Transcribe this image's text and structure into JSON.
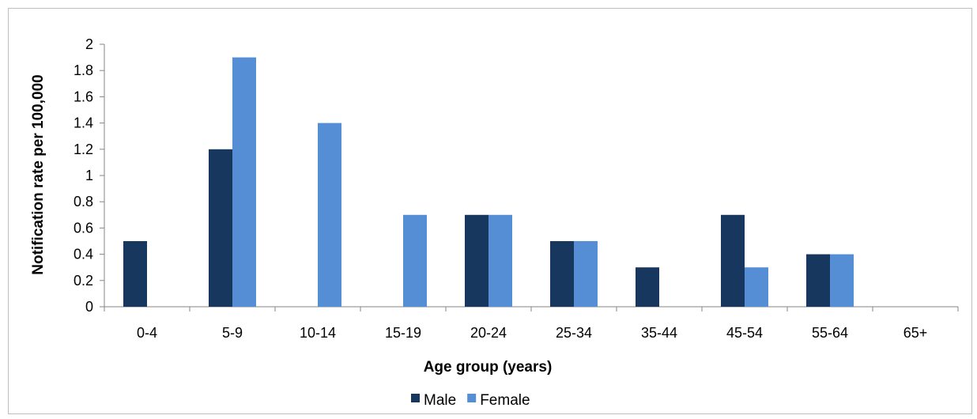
{
  "chart_data": {
    "type": "bar",
    "title": "",
    "xlabel": "Age group (years)",
    "ylabel": "Notification rate per 100,000",
    "categories": [
      "0-4",
      "5-9",
      "10-14",
      "15-19",
      "20-24",
      "25-34",
      "35-44",
      "45-54",
      "55-64",
      "65+"
    ],
    "series": [
      {
        "name": "Male",
        "color": "#17375e",
        "values": [
          0.5,
          1.2,
          0,
          0,
          0.7,
          0.5,
          0.3,
          0.7,
          0.4,
          0
        ]
      },
      {
        "name": "Female",
        "color": "#558ed5",
        "values": [
          0,
          1.9,
          1.4,
          0.7,
          0.7,
          0.5,
          0,
          0.3,
          0.4,
          0
        ]
      }
    ],
    "ylim": [
      0,
      2
    ],
    "yticks": [
      "0",
      "0.2",
      "0.4",
      "0.6",
      "0.8",
      "1",
      "1.2",
      "1.4",
      "1.6",
      "1.8",
      "2"
    ],
    "grid": false,
    "legend_position": "bottom"
  }
}
